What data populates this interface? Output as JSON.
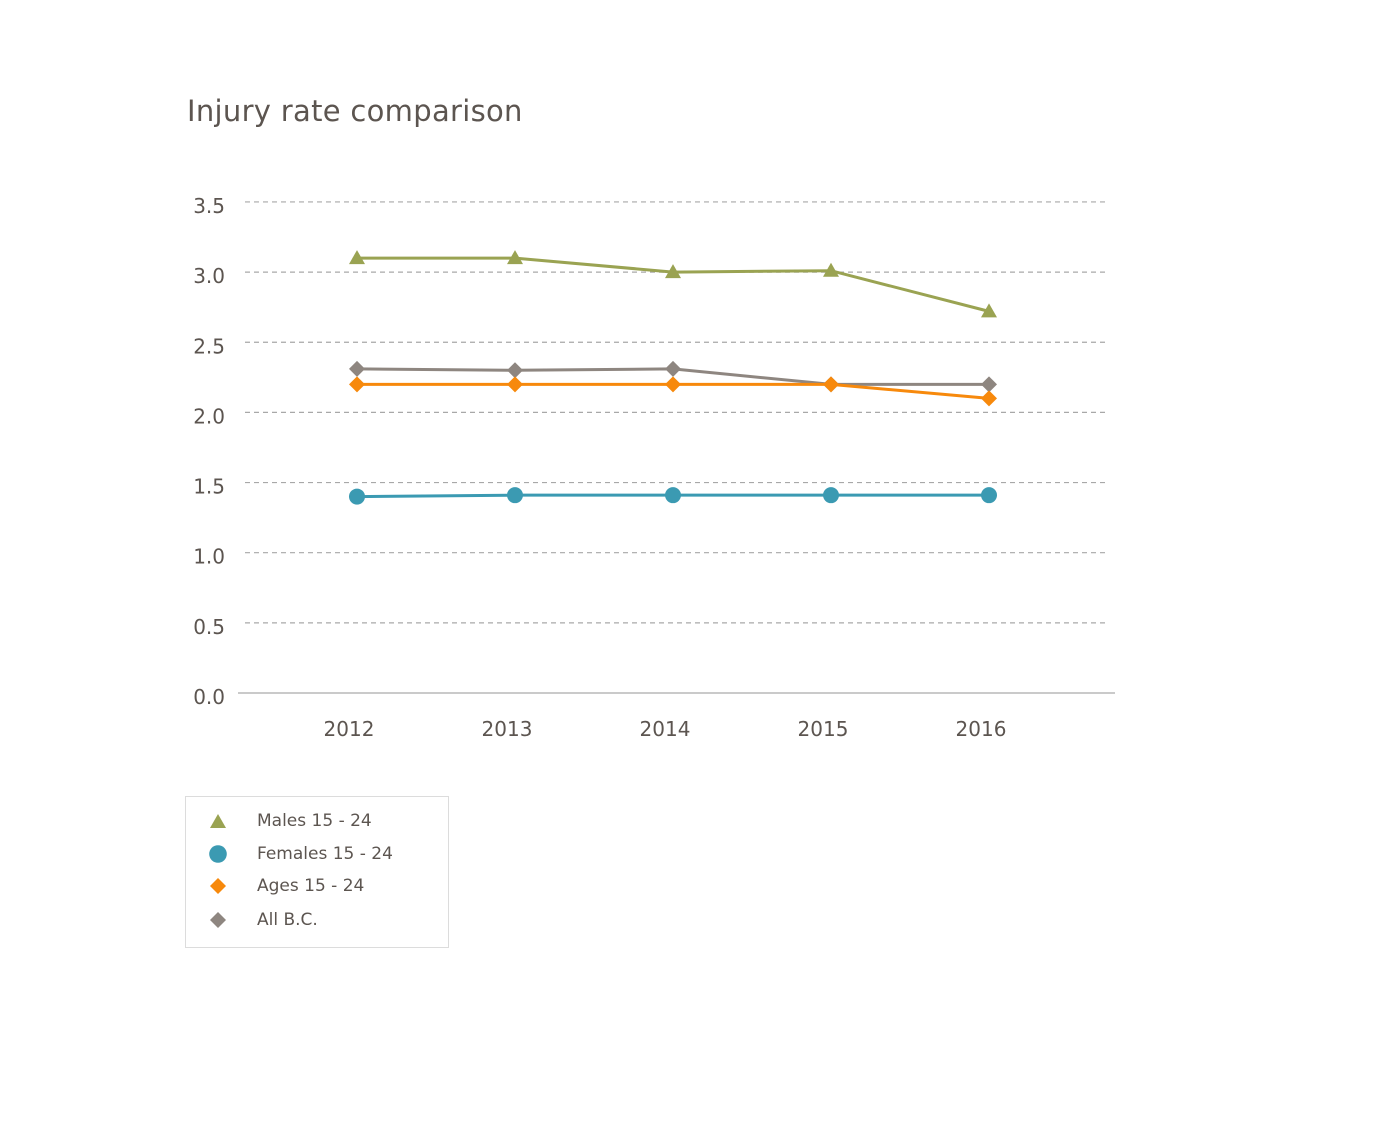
{
  "chart_data": {
    "type": "line",
    "title": "Injury rate comparison",
    "xlabel": "",
    "ylabel": "",
    "categories": [
      "2012",
      "2013",
      "2014",
      "2015",
      "2016"
    ],
    "ylim": [
      0,
      3.5
    ],
    "yticks": [
      "0.0",
      "0.5",
      "1.0",
      "1.5",
      "2.0",
      "2.5",
      "3.0",
      "3.5"
    ],
    "grid": true,
    "legend_position": "bottom-left",
    "series": [
      {
        "name": "Males 15 - 24",
        "marker": "triangle",
        "color": "#9aa352",
        "values": [
          3.1,
          3.1,
          3.0,
          3.01,
          2.72
        ]
      },
      {
        "name": "Females 15 - 24",
        "marker": "circle",
        "color": "#3b9ab2",
        "values": [
          1.4,
          1.41,
          1.41,
          1.41,
          1.41
        ]
      },
      {
        "name": "Ages 15 - 24",
        "marker": "diamond",
        "color": "#f7890c",
        "values": [
          2.2,
          2.2,
          2.2,
          2.2,
          2.1
        ]
      },
      {
        "name": "All B.C.",
        "marker": "diamond",
        "color": "#8e8680",
        "values": [
          2.31,
          2.3,
          2.31,
          2.2,
          2.2
        ]
      }
    ]
  }
}
